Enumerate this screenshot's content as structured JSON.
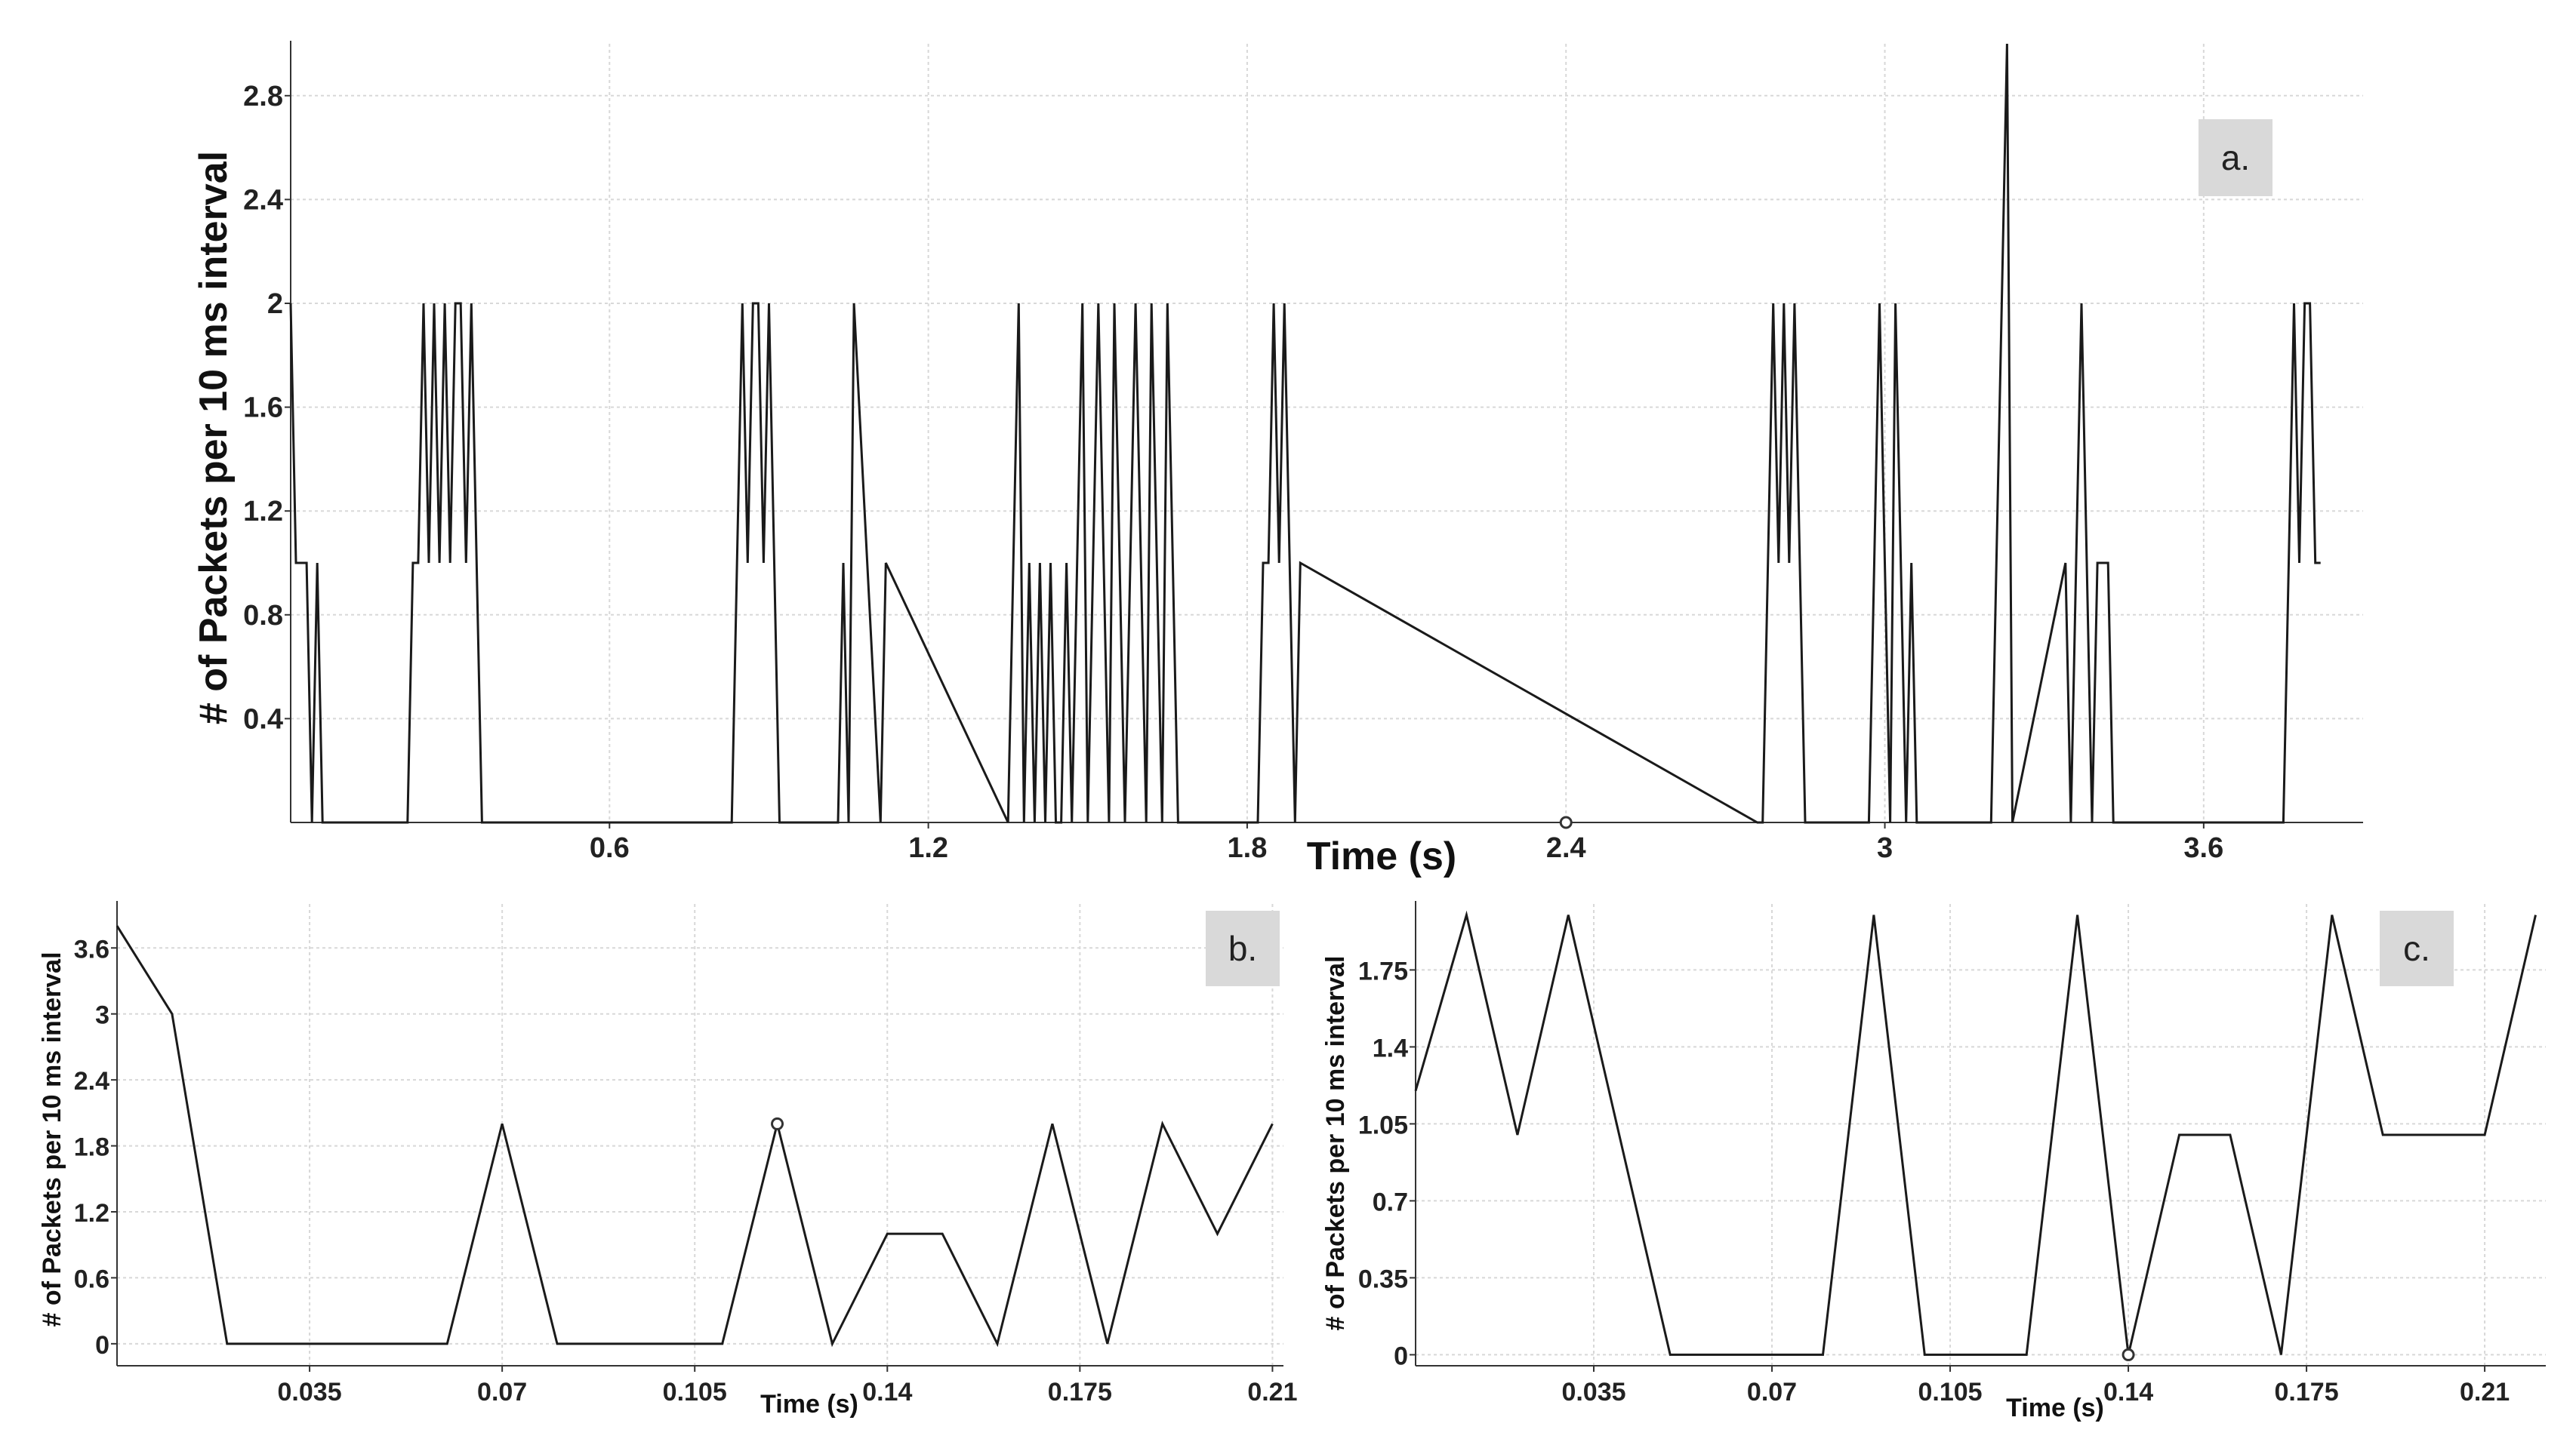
{
  "chart_data": [
    {
      "type": "line",
      "panel_label": "a.",
      "xlabel": "Time (s)",
      "ylabel": "# of Packets per 10 ms interval",
      "xlim": [
        0.0,
        3.9
      ],
      "ylim": [
        0.0,
        3.0
      ],
      "xticks": [
        "0.6",
        "1.2",
        "1.8",
        "2.4",
        "3",
        "3.6"
      ],
      "yticks": [
        "0.4",
        "0.8",
        "1.2",
        "1.6",
        "2",
        "2.4",
        "2.8"
      ],
      "grid": true,
      "marker_at": [
        2.4,
        0.0
      ],
      "x": [
        0.0,
        0.01,
        0.02,
        0.03,
        0.04,
        0.05,
        0.06,
        0.07,
        0.08,
        0.22,
        0.23,
        0.24,
        0.25,
        0.26,
        0.27,
        0.28,
        0.29,
        0.3,
        0.31,
        0.32,
        0.33,
        0.34,
        0.35,
        0.36,
        0.37,
        0.38,
        0.83,
        0.84,
        0.85,
        0.86,
        0.87,
        0.88,
        0.89,
        0.9,
        0.91,
        0.92,
        0.95,
        1.03,
        1.04,
        1.05,
        1.06,
        1.11,
        1.12,
        1.35,
        1.36,
        1.37,
        1.38,
        1.39,
        1.4,
        1.41,
        1.42,
        1.43,
        1.44,
        1.45,
        1.46,
        1.47,
        1.48,
        1.49,
        1.5,
        1.51,
        1.52,
        1.53,
        1.54,
        1.55,
        1.56,
        1.57,
        1.58,
        1.59,
        1.6,
        1.61,
        1.62,
        1.63,
        1.64,
        1.65,
        1.66,
        1.67,
        1.68,
        1.82,
        1.83,
        1.84,
        1.85,
        1.86,
        1.87,
        1.88,
        1.89,
        1.9,
        2.76,
        2.77,
        2.78,
        2.79,
        2.8,
        2.81,
        2.82,
        2.83,
        2.84,
        2.85,
        2.86,
        2.97,
        2.98,
        2.99,
        3.0,
        3.01,
        3.02,
        3.03,
        3.04,
        3.05,
        3.06,
        3.19,
        3.2,
        3.21,
        3.22,
        3.23,
        3.24,
        3.34,
        3.35,
        3.36,
        3.37,
        3.38,
        3.39,
        3.4,
        3.41,
        3.42,
        3.43,
        3.74,
        3.75,
        3.76,
        3.77,
        3.78,
        3.79,
        3.8,
        3.81,
        3.82
      ],
      "y": [
        2,
        1,
        1,
        1,
        0,
        1,
        0,
        0,
        0,
        0,
        1,
        1,
        2,
        1,
        2,
        1,
        2,
        1,
        2,
        2,
        1,
        2,
        1,
        0,
        0,
        0,
        0,
        1,
        2,
        1,
        2,
        2,
        1,
        2,
        1,
        0,
        0,
        0,
        1,
        0,
        2,
        0,
        1,
        0,
        1,
        2,
        0,
        1,
        0,
        1,
        0,
        1,
        0,
        0,
        1,
        0,
        1,
        2,
        0,
        1,
        2,
        1,
        0,
        2,
        1,
        0,
        1,
        2,
        1,
        0,
        2,
        1,
        0,
        2,
        1,
        0,
        0,
        0,
        1,
        1,
        2,
        1,
        2,
        1,
        0,
        1,
        0,
        0,
        1,
        2,
        1,
        2,
        1,
        2,
        1,
        0,
        0,
        0,
        1,
        2,
        1,
        0,
        2,
        1,
        0,
        1,
        0,
        0,
        0,
        1,
        2,
        3,
        0,
        1,
        0,
        1,
        2,
        1,
        0,
        1,
        1,
        1,
        0,
        0,
        0,
        1,
        2,
        1,
        2,
        2,
        1,
        1
      ]
    },
    {
      "type": "line",
      "panel_label": "b.",
      "xlabel": "Time (s)",
      "ylabel": "# of Packets per 10 ms interval",
      "xlim": [
        0.0,
        0.212
      ],
      "ylim": [
        -0.2,
        4.0
      ],
      "xticks": [
        "0.035",
        "0.07",
        "0.105",
        "0.14",
        "0.175",
        "0.21"
      ],
      "yticks": [
        "0",
        "0.6",
        "1.2",
        "1.8",
        "2.4",
        "3",
        "3.6"
      ],
      "grid": true,
      "marker_at": [
        0.12,
        2.0
      ],
      "x": [
        0.0,
        0.01,
        0.02,
        0.03,
        0.04,
        0.05,
        0.06,
        0.07,
        0.08,
        0.09,
        0.1,
        0.11,
        0.12,
        0.13,
        0.14,
        0.15,
        0.16,
        0.17,
        0.18,
        0.19,
        0.2,
        0.21
      ],
      "y": [
        3.8,
        3.0,
        0,
        0,
        0,
        0,
        0,
        2,
        0,
        0,
        0,
        0,
        2,
        0,
        1,
        1,
        0,
        2,
        0,
        2,
        1,
        2
      ]
    },
    {
      "type": "line",
      "panel_label": "c.",
      "xlabel": "Time (s)",
      "ylabel": "# of Packets per 10 ms interval",
      "xlim": [
        0.0,
        0.222
      ],
      "ylim": [
        -0.05,
        2.05
      ],
      "xticks": [
        "0.035",
        "0.07",
        "0.105",
        "0.14",
        "0.175",
        "0.21"
      ],
      "yticks": [
        "0",
        "0.35",
        "0.7",
        "1.05",
        "1.4",
        "1.75"
      ],
      "grid": true,
      "marker_at": [
        0.14,
        0.0
      ],
      "x": [
        0.0,
        0.01,
        0.02,
        0.03,
        0.04,
        0.05,
        0.06,
        0.07,
        0.08,
        0.09,
        0.1,
        0.11,
        0.12,
        0.13,
        0.14,
        0.15,
        0.16,
        0.17,
        0.18,
        0.19,
        0.2,
        0.21,
        0.22
      ],
      "y": [
        1.2,
        2,
        1,
        2,
        1,
        0,
        0,
        0,
        0,
        2,
        0,
        0,
        0,
        2,
        0,
        1,
        1,
        0,
        2,
        1,
        1,
        1,
        2
      ]
    }
  ]
}
